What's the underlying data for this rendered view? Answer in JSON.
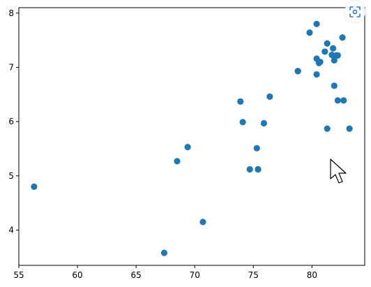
{
  "chart_data": {
    "type": "scatter",
    "title": "",
    "xlabel": "",
    "ylabel": "",
    "xlim": [
      55,
      84.5
    ],
    "ylim": [
      3.35,
      8.1
    ],
    "xticks": [
      55,
      60,
      65,
      70,
      75,
      80
    ],
    "yticks": [
      4,
      5,
      6,
      7,
      8
    ],
    "grid": false,
    "marker_color": "#1f77b4",
    "series": [
      {
        "x": [
          56.3,
          67.4,
          68.5,
          69.4,
          70.7,
          73.9,
          74.1,
          74.7,
          75.3,
          75.4,
          75.4,
          75.9,
          76.4,
          78.8,
          78.8,
          78.8,
          79.8,
          80.4,
          80.4,
          80.4,
          80.6,
          80.7,
          81.1,
          81.3,
          81.3,
          81.7,
          81.8,
          81.9,
          81.9,
          82.1,
          82.2,
          82.2,
          82.6,
          82.7,
          83.2
        ],
        "y": [
          4.8,
          3.58,
          5.27,
          5.53,
          4.15,
          6.37,
          5.99,
          5.12,
          5.51,
          5.12,
          5.12,
          5.97,
          6.46,
          6.93,
          6.93,
          6.93,
          7.64,
          7.8,
          7.16,
          6.87,
          7.08,
          7.1,
          7.29,
          7.44,
          5.87,
          7.23,
          7.35,
          6.66,
          7.13,
          7.22,
          6.39,
          7.22,
          7.55,
          6.39,
          5.87
        ]
      }
    ]
  },
  "ui": {
    "screenshot_icon": "screenshot-scan-icon",
    "cursor_icon": "mouse-pointer-icon"
  }
}
